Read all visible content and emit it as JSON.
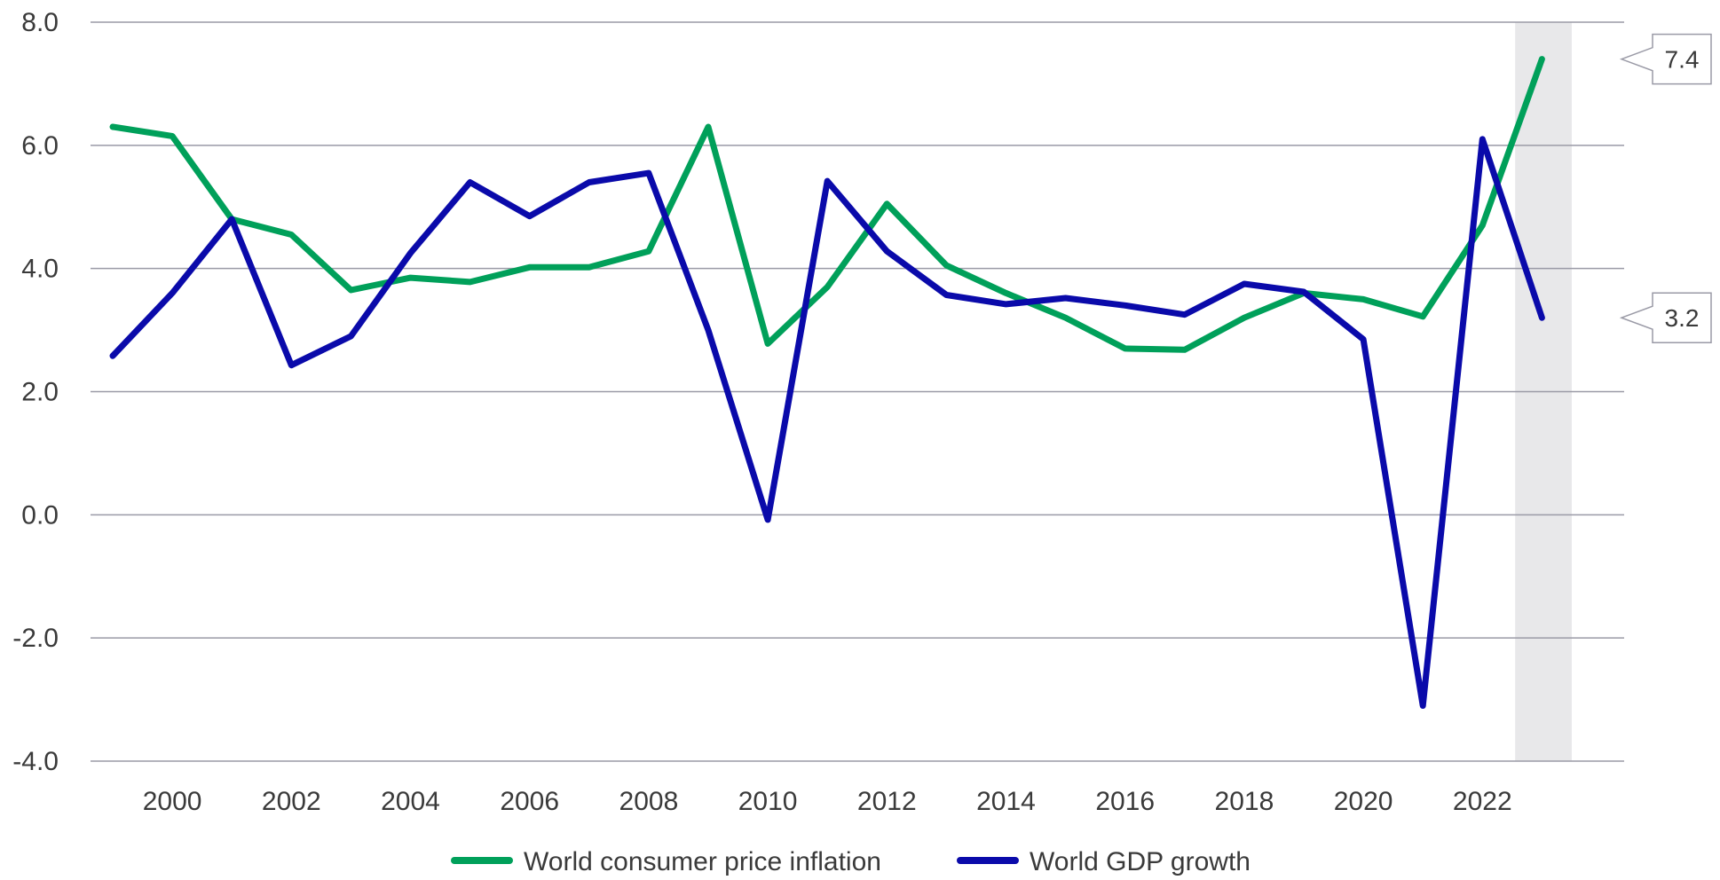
{
  "chart_data": {
    "type": "line",
    "x": [
      1999,
      2000,
      2001,
      2002,
      2003,
      2004,
      2005,
      2006,
      2007,
      2008,
      2009,
      2010,
      2011,
      2012,
      2013,
      2014,
      2015,
      2016,
      2017,
      2018,
      2019,
      2020,
      2021,
      2022,
      2023
    ],
    "series": [
      {
        "name": "World consumer price inflation",
        "color": "#00a05a",
        "values": [
          6.3,
          6.15,
          4.8,
          4.55,
          3.65,
          3.85,
          3.78,
          4.02,
          4.02,
          4.28,
          6.3,
          2.78,
          3.7,
          5.05,
          4.05,
          3.6,
          3.2,
          2.7,
          2.68,
          3.2,
          3.6,
          3.5,
          3.22,
          4.7,
          7.4
        ]
      },
      {
        "name": "World GDP growth",
        "color": "#0a0aaa",
        "values": [
          2.58,
          3.6,
          4.8,
          2.43,
          2.9,
          4.25,
          5.4,
          4.85,
          5.4,
          5.55,
          3.0,
          -0.08,
          5.42,
          4.28,
          3.57,
          3.42,
          3.52,
          3.4,
          3.25,
          3.75,
          3.62,
          2.85,
          -3.1,
          6.1,
          3.2
        ]
      }
    ],
    "x_tick_labels": [
      "2000",
      "2002",
      "2004",
      "2006",
      "2008",
      "2010",
      "2012",
      "2014",
      "2016",
      "2018",
      "2020",
      "2022"
    ],
    "y_tick_labels": [
      "8.0",
      "6.0",
      "4.0",
      "2.0",
      "0.0",
      "-2.0",
      "-4.0"
    ],
    "ylim": [
      -4,
      8
    ],
    "grid": "horizontal",
    "legend_position": "bottom",
    "highlight_band": {
      "x_start": 2022.55,
      "x_end": 2023.5,
      "color": "#e8e8ea"
    },
    "callouts": [
      {
        "label": "7.4",
        "value": 7.4
      },
      {
        "label": "3.2",
        "value": 3.2
      }
    ]
  }
}
